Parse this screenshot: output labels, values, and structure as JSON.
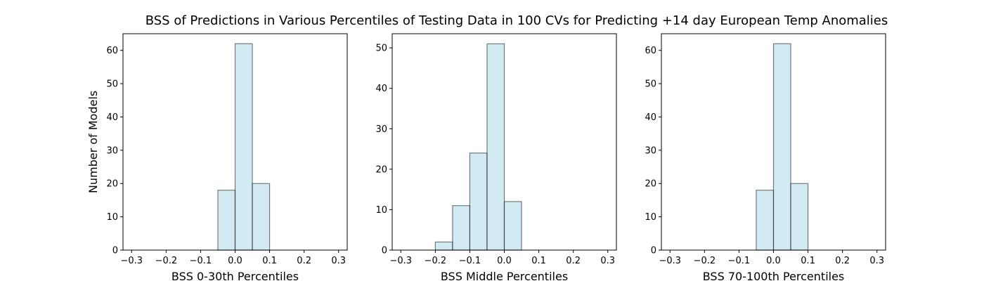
{
  "figure": {
    "title": "BSS of Predictions in Various Percentiles of Testing Data in 100 CVs for Predicting +14 day European Temp Anomalies"
  },
  "chart_data": [
    {
      "type": "bar",
      "title": "",
      "xlabel": "BSS 0-30th Percentiles",
      "ylabel": "Number of Models",
      "xlim": [
        -0.325,
        0.325
      ],
      "ylim": [
        0,
        65
      ],
      "xticks": [
        -0.3,
        -0.2,
        -0.1,
        0.0,
        0.1,
        0.2,
        0.3
      ],
      "xtick_labels": [
        "−0.3",
        "−0.2",
        "−0.1",
        "0.0",
        "0.1",
        "0.2",
        "0.3"
      ],
      "yticks": [
        0,
        10,
        20,
        30,
        40,
        50,
        60
      ],
      "bin_width": 0.05,
      "bin_starts": [
        -0.05,
        0.0,
        0.05
      ],
      "values": [
        18,
        62,
        20
      ],
      "bar_color": "#add8e6",
      "edge_color": "#000000"
    },
    {
      "type": "bar",
      "title": "",
      "xlabel": "BSS Middle Percentiles",
      "ylabel": "",
      "xlim": [
        -0.325,
        0.325
      ],
      "ylim": [
        0,
        53.5
      ],
      "xticks": [
        -0.3,
        -0.2,
        -0.1,
        0.0,
        0.1,
        0.2,
        0.3
      ],
      "xtick_labels": [
        "−0.3",
        "−0.2",
        "−0.1",
        "0.0",
        "0.1",
        "0.2",
        "0.3"
      ],
      "yticks": [
        0,
        10,
        20,
        30,
        40,
        50
      ],
      "bin_width": 0.05,
      "bin_starts": [
        -0.2,
        -0.15,
        -0.1,
        -0.05,
        0.0
      ],
      "values": [
        2,
        11,
        24,
        51,
        12
      ],
      "bar_color": "#add8e6",
      "edge_color": "#000000"
    },
    {
      "type": "bar",
      "title": "",
      "xlabel": "BSS 70-100th Percentiles",
      "ylabel": "",
      "xlim": [
        -0.325,
        0.325
      ],
      "ylim": [
        0,
        65
      ],
      "xticks": [
        -0.3,
        -0.2,
        -0.1,
        0.0,
        0.1,
        0.2,
        0.3
      ],
      "xtick_labels": [
        "−0.3",
        "−0.2",
        "−0.1",
        "0.0",
        "0.1",
        "0.2",
        "0.3"
      ],
      "yticks": [
        0,
        10,
        20,
        30,
        40,
        50,
        60
      ],
      "bin_width": 0.05,
      "bin_starts": [
        -0.05,
        0.0,
        0.05
      ],
      "values": [
        18,
        62,
        20
      ],
      "bar_color": "#add8e6",
      "edge_color": "#000000"
    }
  ]
}
